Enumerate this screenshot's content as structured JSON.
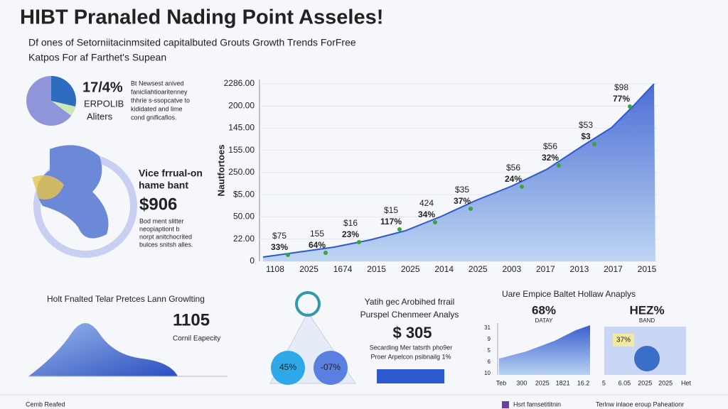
{
  "header": {
    "title": "HIBT Pranaled Nading Point Asseles!",
    "subtitle": [
      "Df ones of Setorniitacinmsited capitalbuted Grouts Growth Trends ForFree",
      "Katpos For af Farthet's Supean"
    ]
  },
  "summary": {
    "pie_label": "17/4%",
    "pie_sub": [
      "ERPOLIB",
      "Aliters"
    ],
    "text": [
      "Bt Newsest anived",
      "fanicliahtioaritenney",
      "thhrie s-ssopcatve to",
      "kididated and lime",
      "cond gnificafios."
    ]
  },
  "map": {
    "heading": [
      "Vice frrual-on",
      "hame bant"
    ],
    "value": "$906",
    "text": [
      "Bod ment slitter",
      "neopiaptiont b",
      "norpt anitchocrited",
      "bulces snitsh alles."
    ]
  },
  "main_chart": {
    "y_axis_title": "Nautfortoes",
    "y_labels": [
      "2286.00",
      "200.00",
      "145.00",
      "155.00",
      "250.00",
      "$5.00",
      "50.00",
      "22.00",
      "0"
    ],
    "x_labels": [
      "1108",
      "2025",
      "1674",
      "2015",
      "2025",
      "2014",
      "2025",
      "2003",
      "2017",
      "2013",
      "2017",
      "2015"
    ],
    "annotations": [
      {
        "top": "$75",
        "bottom": "33%"
      },
      {
        "top": "155",
        "bottom": "64%"
      },
      {
        "top": "$16",
        "bottom": "23%"
      },
      {
        "top": "$15",
        "bottom": "117%"
      },
      {
        "top": "424",
        "bottom": "34%"
      },
      {
        "top": "$35",
        "bottom": "37%"
      },
      {
        "top": "$56",
        "bottom": "24%"
      },
      {
        "top": "$56",
        "bottom": "32%"
      },
      {
        "top": "$53",
        "bottom": "$3"
      },
      {
        "top": "$98",
        "bottom": "77%"
      }
    ]
  },
  "panel_left": {
    "title": "Holt Fnalted Telar Pretces Lann Growlting",
    "value": "1105",
    "caption": "Cornil Eapecity"
  },
  "panel_mid": {
    "title": [
      "Yatih gec Arobihed frrail",
      "Purspel Chenmeer Analys"
    ],
    "value": "$ 305",
    "text": [
      "Secarding Mer tatsrth pho9er",
      "Proer Arpelcon psibnailg 1%"
    ],
    "left_pct": "45%",
    "right_pct": "-07%"
  },
  "panel_right": {
    "title": "Uare Empice Baltet Hollaw Anaplys",
    "left_value": "68%",
    "left_sub": "DATAY",
    "right_value": "HEZ%",
    "right_sub": "BAND",
    "badge": "37%",
    "y_labels": [
      "31",
      "9",
      "5",
      "6",
      "10"
    ],
    "x_labels": [
      "Teb",
      "300",
      "2025",
      "1821",
      "16.2",
      "5",
      "6.05",
      "2025",
      "2025",
      "Het"
    ]
  },
  "footer": [
    "Cemb Reafed",
    "Hsrt famsetititnin",
    "Terlnw inlaoe eroup Paheationr"
  ]
}
